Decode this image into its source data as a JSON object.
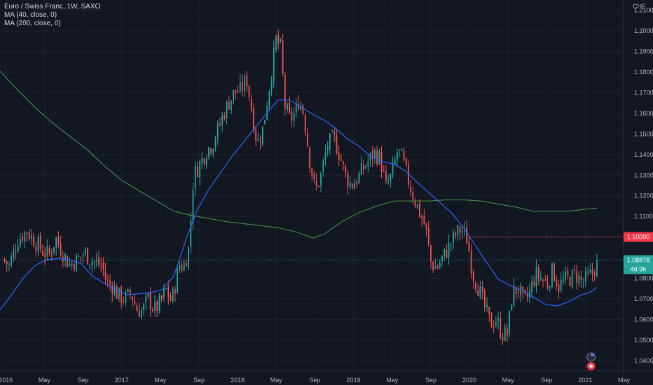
{
  "header": {
    "symbol_line": "Euro / Swiss Franc, 1W, SAXO",
    "study_1": "MA (40, close, 0)",
    "study_2": "MA (200, close, 0)"
  },
  "axis": {
    "currency": "CHF",
    "price_ticks": [
      "1.21000",
      "1.20000",
      "1.19000",
      "1.18000",
      "1.17000",
      "1.16000",
      "1.15000",
      "1.14000",
      "1.13000",
      "1.12000",
      "1.11000",
      "1.10000",
      "1.09000",
      "1.08000",
      "1.07000",
      "1.06000",
      "1.05000",
      "1.04000"
    ],
    "time_ticks": [
      "2016",
      "May",
      "Sep",
      "2017",
      "May",
      "Sep",
      "2018",
      "May",
      "Sep",
      "2019",
      "May",
      "Sep",
      "2020",
      "May",
      "Sep",
      "2021",
      "May"
    ]
  },
  "badges": {
    "alert_price": "1.10000",
    "last_price": "1.08878",
    "countdown": "4d 9h"
  },
  "colors": {
    "background": "#131722",
    "up": "#26a69a",
    "down": "#ef5350",
    "ma40": "#2962ff",
    "ma200": "#4caf50",
    "alert": "#f23645"
  },
  "chart_data": {
    "type": "candlestick",
    "title": "Euro / Swiss Franc, 1W, SAXO",
    "ylim": [
      1.035,
      1.215
    ],
    "alert_level": 1.1,
    "last_close": 1.08878,
    "series": [
      {
        "name": "MA (40, close, 0)",
        "points": [
          [
            2015.95,
            1.0645
          ],
          [
            2016.05,
            1.072
          ],
          [
            2016.15,
            1.08
          ],
          [
            2016.25,
            1.086
          ],
          [
            2016.35,
            1.089
          ],
          [
            2016.45,
            1.0895
          ],
          [
            2016.55,
            1.089
          ],
          [
            2016.65,
            1.087
          ],
          [
            2016.75,
            1.081
          ],
          [
            2016.85,
            1.0775
          ],
          [
            2016.95,
            1.0745
          ],
          [
            2017.05,
            1.072
          ],
          [
            2017.15,
            1.0725
          ],
          [
            2017.25,
            1.073
          ],
          [
            2017.35,
            1.0745
          ],
          [
            2017.45,
            1.081
          ],
          [
            2017.55,
            1.098
          ],
          [
            2017.65,
            1.113
          ],
          [
            2017.75,
            1.123
          ],
          [
            2017.85,
            1.131
          ],
          [
            2017.95,
            1.139
          ],
          [
            2018.05,
            1.146
          ],
          [
            2018.15,
            1.153
          ],
          [
            2018.25,
            1.16
          ],
          [
            2018.35,
            1.1665
          ],
          [
            2018.45,
            1.1665
          ],
          [
            2018.55,
            1.163
          ],
          [
            2018.65,
            1.1595
          ],
          [
            2018.75,
            1.1565
          ],
          [
            2018.85,
            1.1525
          ],
          [
            2018.95,
            1.1475
          ],
          [
            2019.05,
            1.144
          ],
          [
            2019.15,
            1.139
          ],
          [
            2019.25,
            1.1365
          ],
          [
            2019.35,
            1.1355
          ],
          [
            2019.45,
            1.132
          ],
          [
            2019.55,
            1.1265
          ],
          [
            2019.65,
            1.1215
          ],
          [
            2019.75,
            1.1165
          ],
          [
            2019.85,
            1.1115
          ],
          [
            2019.95,
            1.1045
          ],
          [
            2020.05,
            1.096
          ],
          [
            2020.15,
            1.0875
          ],
          [
            2020.25,
            1.0795
          ],
          [
            2020.35,
            1.0765
          ],
          [
            2020.45,
            1.074
          ],
          [
            2020.55,
            1.071
          ],
          [
            2020.65,
            1.0675
          ],
          [
            2020.75,
            1.0665
          ],
          [
            2020.85,
            1.0685
          ],
          [
            2020.95,
            1.0715
          ],
          [
            2021.05,
            1.0735
          ],
          [
            2021.1,
            1.0755
          ]
        ]
      },
      {
        "name": "MA (200, close, 0)",
        "points": [
          [
            2015.95,
            1.1805
          ],
          [
            2016.1,
            1.1715
          ],
          [
            2016.25,
            1.163
          ],
          [
            2016.4,
            1.1555
          ],
          [
            2016.55,
            1.149
          ],
          [
            2016.7,
            1.1425
          ],
          [
            2016.85,
            1.1345
          ],
          [
            2017.0,
            1.1275
          ],
          [
            2017.15,
            1.1225
          ],
          [
            2017.3,
            1.1175
          ],
          [
            2017.45,
            1.1125
          ],
          [
            2017.6,
            1.1105
          ],
          [
            2017.75,
            1.109
          ],
          [
            2017.9,
            1.1075
          ],
          [
            2018.05,
            1.1065
          ],
          [
            2018.2,
            1.1055
          ],
          [
            2018.35,
            1.1045
          ],
          [
            2018.5,
            1.1025
          ],
          [
            2018.65,
            1.0995
          ],
          [
            2018.75,
            1.1015
          ],
          [
            2018.9,
            1.1075
          ],
          [
            2019.05,
            1.112
          ],
          [
            2019.2,
            1.115
          ],
          [
            2019.35,
            1.1175
          ],
          [
            2019.5,
            1.1175
          ],
          [
            2019.65,
            1.1175
          ],
          [
            2019.8,
            1.118
          ],
          [
            2019.95,
            1.118
          ],
          [
            2020.1,
            1.1175
          ],
          [
            2020.25,
            1.116
          ],
          [
            2020.4,
            1.1145
          ],
          [
            2020.55,
            1.1125
          ],
          [
            2020.7,
            1.1125
          ],
          [
            2020.85,
            1.1125
          ],
          [
            2021.0,
            1.1135
          ],
          [
            2021.1,
            1.114
          ]
        ]
      },
      {
        "name": "price",
        "points": [
          [
            2015.97,
            1.0895
          ],
          [
            2016.03,
            1.086
          ],
          [
            2016.1,
            1.0985
          ],
          [
            2016.18,
            1.103
          ],
          [
            2016.25,
            1.098
          ],
          [
            2016.33,
            1.0925
          ],
          [
            2016.38,
            1.0915
          ],
          [
            2016.43,
            1.0995
          ],
          [
            2016.5,
            1.0915
          ],
          [
            2016.55,
            1.0865
          ],
          [
            2016.62,
            1.089
          ],
          [
            2016.68,
            1.0925
          ],
          [
            2016.73,
            1.089
          ],
          [
            2016.78,
            1.0875
          ],
          [
            2016.83,
            1.0865
          ],
          [
            2016.87,
            1.0775
          ],
          [
            2016.92,
            1.0765
          ],
          [
            2016.97,
            1.0715
          ],
          [
            2017.03,
            1.07
          ],
          [
            2017.08,
            1.0725
          ],
          [
            2017.13,
            1.065
          ],
          [
            2017.18,
            1.064
          ],
          [
            2017.23,
            1.0705
          ],
          [
            2017.28,
            1.0645
          ],
          [
            2017.33,
            1.0675
          ],
          [
            2017.38,
            1.0745
          ],
          [
            2017.43,
            1.0685
          ],
          [
            2017.5,
            1.087
          ],
          [
            2017.53,
            1.085
          ],
          [
            2017.58,
            1.0945
          ],
          [
            2017.62,
            1.13
          ],
          [
            2017.67,
            1.135
          ],
          [
            2017.73,
            1.142
          ],
          [
            2017.78,
            1.145
          ],
          [
            2017.83,
            1.152
          ],
          [
            2017.88,
            1.16
          ],
          [
            2017.93,
            1.166
          ],
          [
            2017.97,
            1.17
          ],
          [
            2018.02,
            1.171
          ],
          [
            2018.08,
            1.176
          ],
          [
            2018.12,
            1.162
          ],
          [
            2018.17,
            1.145
          ],
          [
            2018.22,
            1.153
          ],
          [
            2018.27,
            1.172
          ],
          [
            2018.3,
            1.182
          ],
          [
            2018.33,
            1.196
          ],
          [
            2018.37,
            1.192
          ],
          [
            2018.41,
            1.163
          ],
          [
            2018.45,
            1.157
          ],
          [
            2018.5,
            1.16
          ],
          [
            2018.53,
            1.167
          ],
          [
            2018.57,
            1.16
          ],
          [
            2018.62,
            1.138
          ],
          [
            2018.67,
            1.122
          ],
          [
            2018.72,
            1.13
          ],
          [
            2018.77,
            1.144
          ],
          [
            2018.83,
            1.148
          ],
          [
            2018.88,
            1.14
          ],
          [
            2018.93,
            1.13
          ],
          [
            2018.98,
            1.125
          ],
          [
            2019.03,
            1.128
          ],
          [
            2019.08,
            1.133
          ],
          [
            2019.13,
            1.137
          ],
          [
            2019.18,
            1.141
          ],
          [
            2019.23,
            1.138
          ],
          [
            2019.28,
            1.124
          ],
          [
            2019.33,
            1.13
          ],
          [
            2019.38,
            1.142
          ],
          [
            2019.42,
            1.138
          ],
          [
            2019.47,
            1.128
          ],
          [
            2019.52,
            1.119
          ],
          [
            2019.57,
            1.112
          ],
          [
            2019.62,
            1.105
          ],
          [
            2019.67,
            1.087
          ],
          [
            2019.72,
            1.085
          ],
          [
            2019.77,
            1.09
          ],
          [
            2019.82,
            1.095
          ],
          [
            2019.88,
            1.101
          ],
          [
            2019.93,
            1.104
          ],
          [
            2019.98,
            1.099
          ],
          [
            2020.03,
            1.082
          ],
          [
            2020.08,
            1.075
          ],
          [
            2020.13,
            1.066
          ],
          [
            2020.18,
            1.058
          ],
          [
            2020.23,
            1.06
          ],
          [
            2020.28,
            1.053
          ],
          [
            2020.33,
            1.053
          ],
          [
            2020.37,
            1.073
          ],
          [
            2020.42,
            1.075
          ],
          [
            2020.47,
            1.068
          ],
          [
            2020.52,
            1.073
          ],
          [
            2020.57,
            1.082
          ],
          [
            2020.62,
            1.08
          ],
          [
            2020.67,
            1.077
          ],
          [
            2020.72,
            1.084
          ],
          [
            2020.77,
            1.076
          ],
          [
            2020.82,
            1.079
          ],
          [
            2020.87,
            1.08
          ],
          [
            2020.92,
            1.082
          ],
          [
            2020.97,
            1.078
          ],
          [
            2021.02,
            1.08
          ],
          [
            2021.07,
            1.083
          ],
          [
            2021.1,
            1.08878
          ]
        ]
      }
    ]
  }
}
